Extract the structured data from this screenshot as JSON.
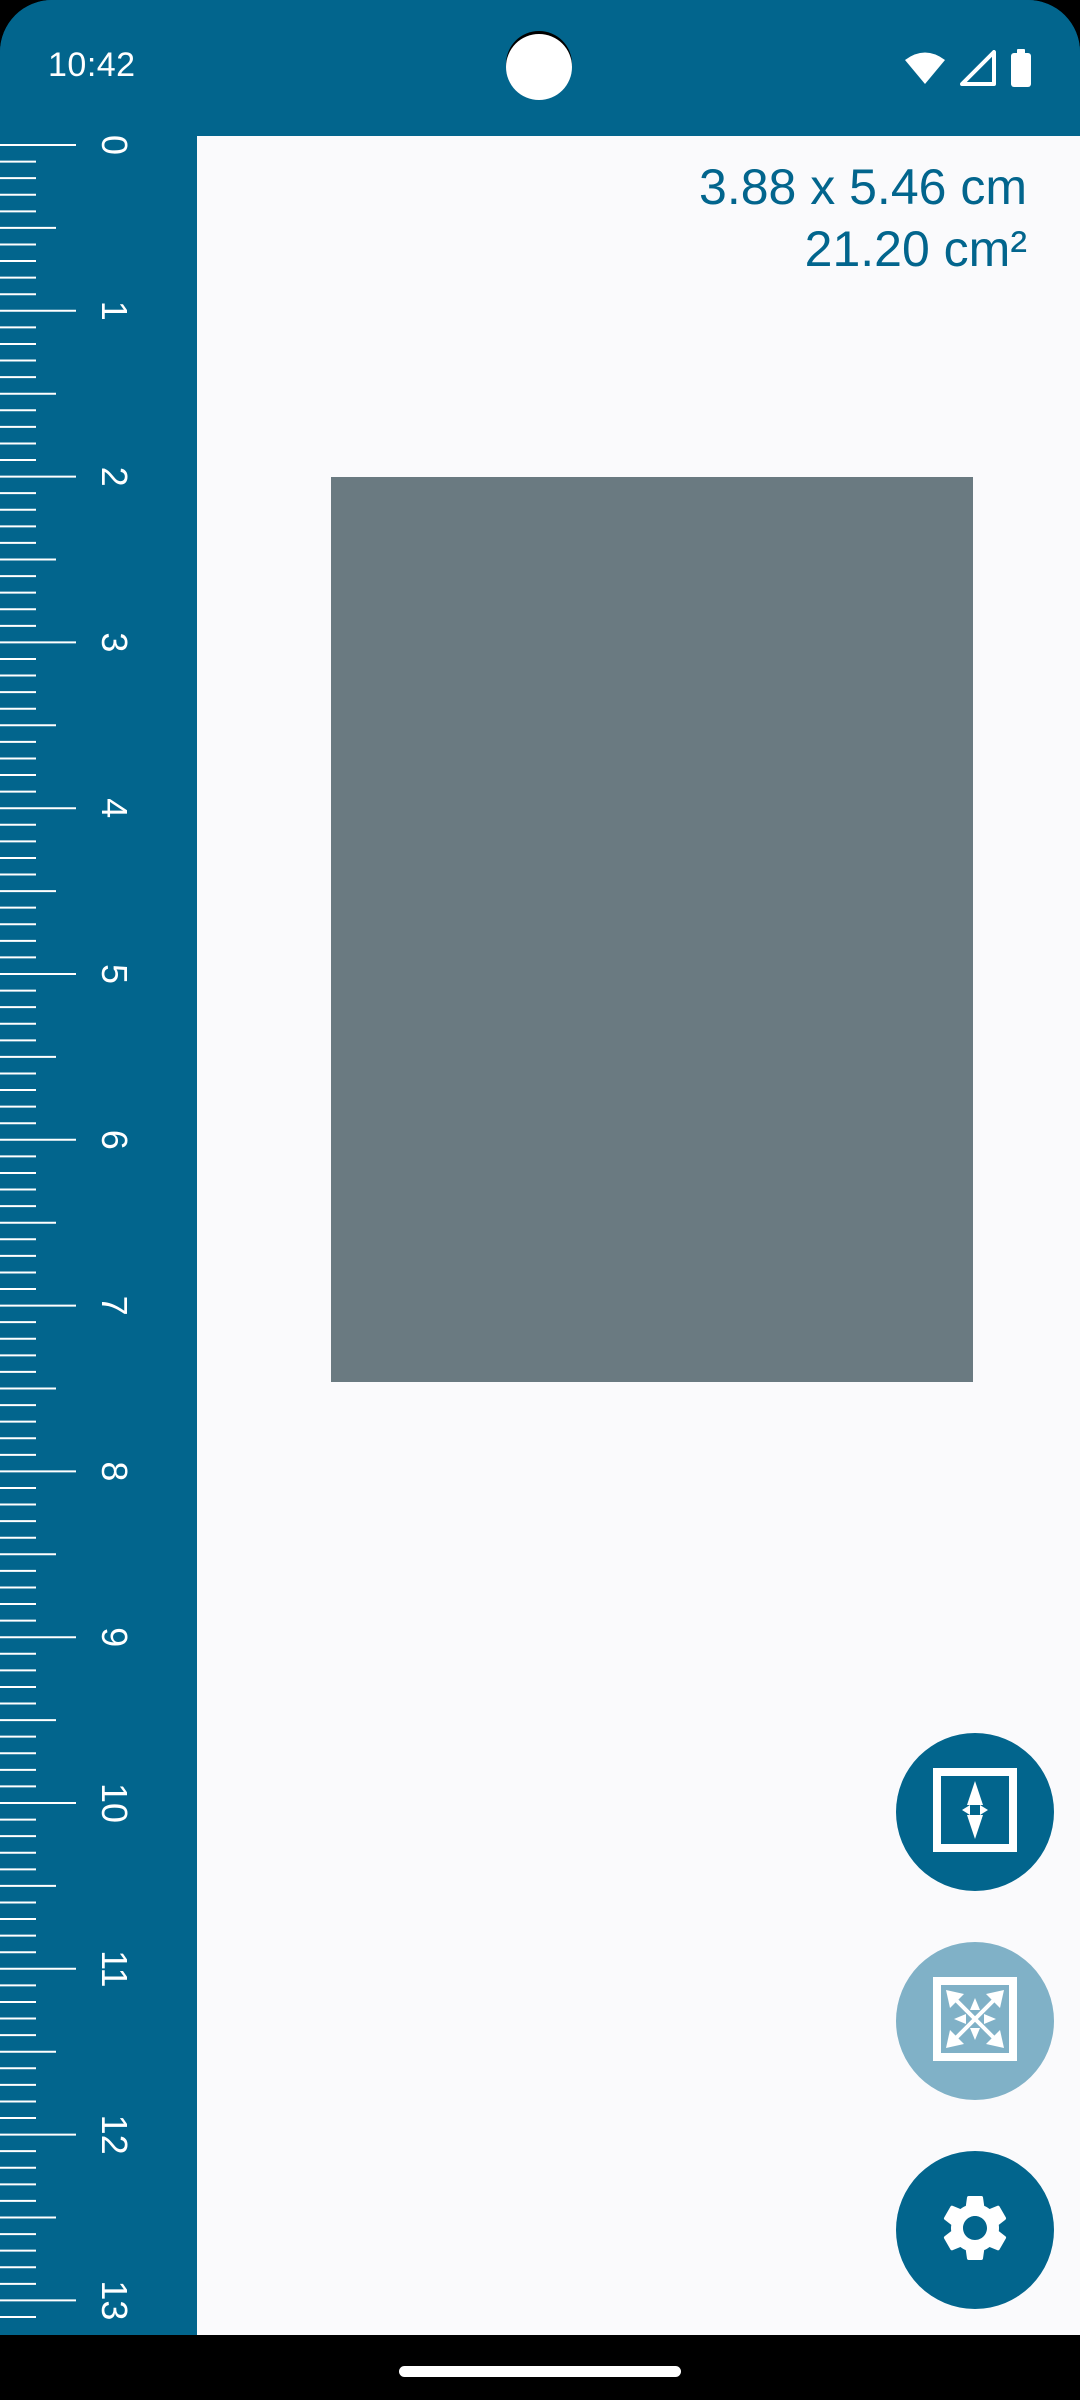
{
  "status_bar": {
    "time": "10:42",
    "icons": [
      "wifi-icon",
      "cellular-signal-icon",
      "battery-icon"
    ]
  },
  "ruler": {
    "unit": "cm",
    "labels": [
      "0",
      "1",
      "2",
      "3",
      "4",
      "5",
      "6",
      "7",
      "8",
      "9",
      "10",
      "11",
      "12",
      "13"
    ]
  },
  "measurement": {
    "dimensions": "3.88 x 5.46 cm",
    "area": "21.20 cm²"
  },
  "buttons": [
    {
      "name": "vertical-resize-button",
      "icon": "vertical-resize-icon",
      "enabled": true
    },
    {
      "name": "free-resize-button",
      "icon": "free-resize-icon",
      "enabled": false
    },
    {
      "name": "settings-button",
      "icon": "gear-icon",
      "enabled": true
    }
  ],
  "colors": {
    "primary": "#02658d",
    "background": "#fafafc",
    "measured_shape": "#6a7a81",
    "disabled_button": "#80b1c7"
  }
}
